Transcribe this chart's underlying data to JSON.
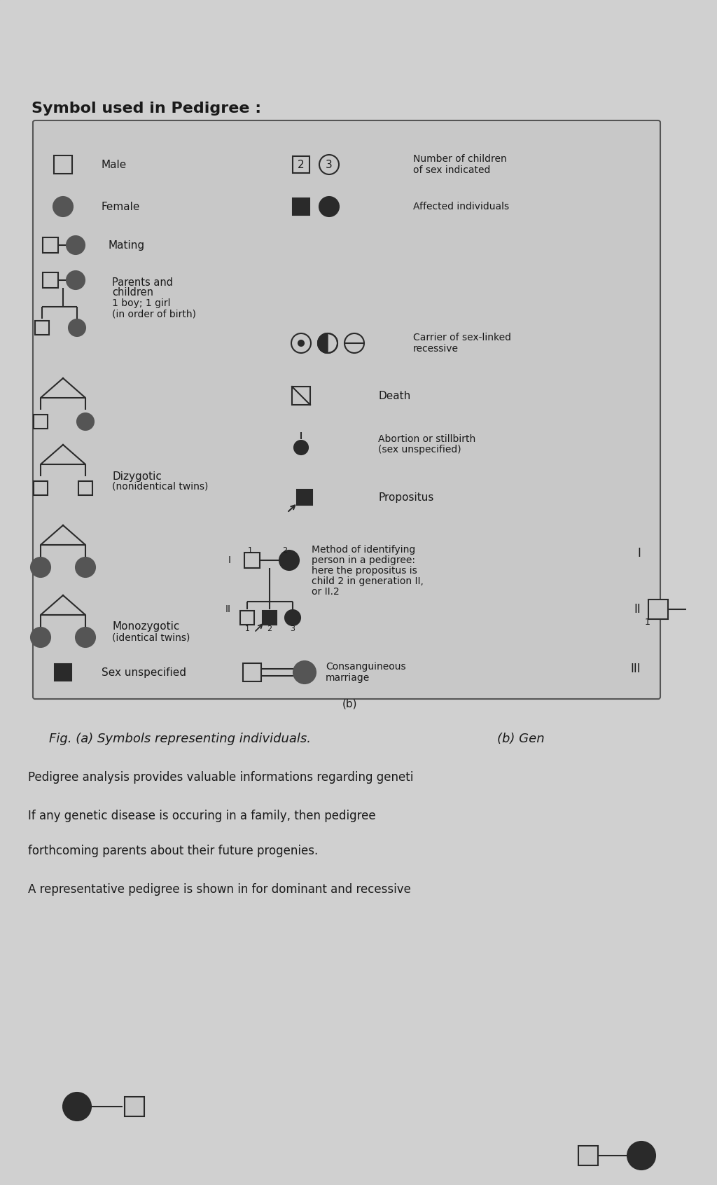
{
  "title": "Symbol used in Pedigree :",
  "fig_caption": "Fig. (a) Symbols representing individuals.",
  "fig_caption2": "(b) Gen",
  "body_texts": [
    "Pedigree analysis provides valuable informations regarding geneti",
    "If any genetic disease is occuring in a family, then pedigree",
    "forthcoming parents about their future progenies.",
    "A representative pedigree is shown in for dominant and recessive"
  ],
  "bg_color": "#b8b8b8",
  "page_color": "#d0d0d0",
  "box_color": "#c8c8c8"
}
